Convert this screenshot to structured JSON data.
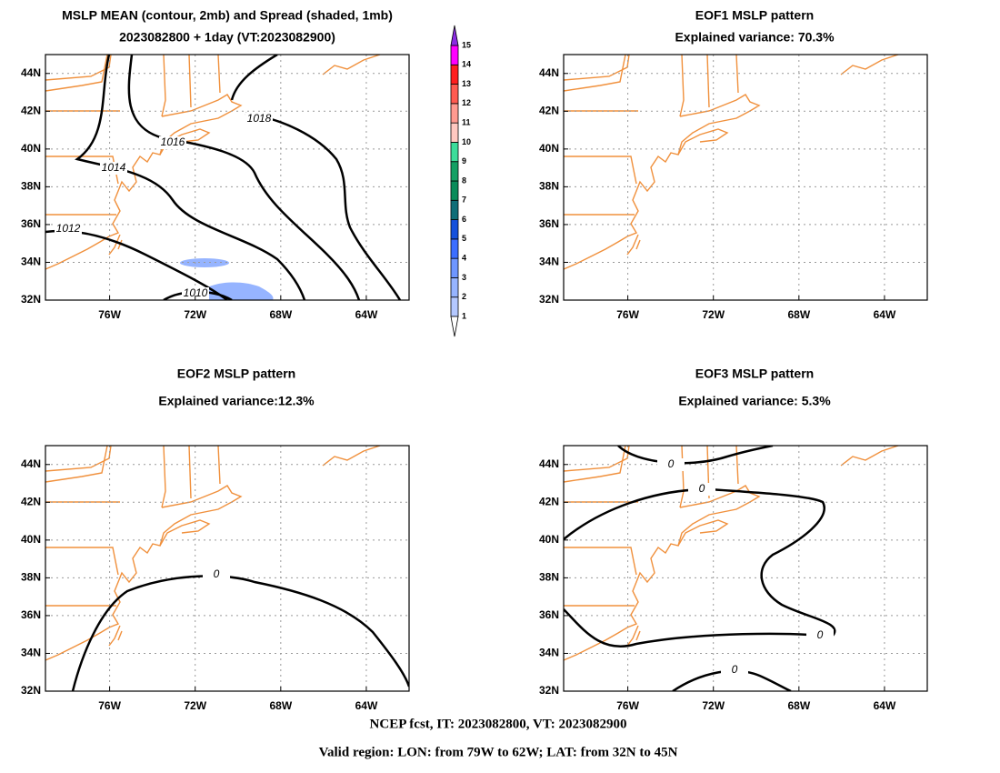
{
  "panels": [
    {
      "title": [
        "MSLP MEAN (contour, 2mb) and Spread (shaded, 1mb)",
        "2023082800 + 1day (VT:2023082900)"
      ],
      "contours": [
        1018,
        1016,
        1014,
        1012,
        1010
      ]
    },
    {
      "title": [
        "EOF1 MSLP pattern",
        "Explained variance: 70.3%"
      ],
      "contours": []
    },
    {
      "title": [
        "EOF2 MSLP pattern",
        "Explained variance:12.3%"
      ],
      "contours": [
        0
      ]
    },
    {
      "title": [
        "EOF3 MSLP pattern",
        "Explained variance: 5.3%"
      ],
      "contours": [
        0,
        0,
        0,
        0
      ]
    }
  ],
  "xlim": [
    -79,
    -62
  ],
  "ylim": [
    32,
    45
  ],
  "xticks": [
    {
      "value": -76,
      "label": "76W"
    },
    {
      "value": -72,
      "label": "72W"
    },
    {
      "value": -68,
      "label": "68W"
    },
    {
      "value": -64,
      "label": "64W"
    }
  ],
  "yticks": [
    {
      "value": 32,
      "label": "32N"
    },
    {
      "value": 34,
      "label": "34N"
    },
    {
      "value": 36,
      "label": "36N"
    },
    {
      "value": 38,
      "label": "38N"
    },
    {
      "value": 40,
      "label": "40N"
    },
    {
      "value": 42,
      "label": "42N"
    },
    {
      "value": 44,
      "label": "44N"
    }
  ],
  "colorbar": {
    "levels": [
      1,
      2,
      3,
      4,
      5,
      6,
      7,
      8,
      9,
      10,
      11,
      12,
      13,
      14,
      15
    ],
    "colors": [
      "#b4c8ff",
      "#96b4ff",
      "#6e96ff",
      "#3c6eff",
      "#1450dc",
      "#0f6e78",
      "#0a8c5a",
      "#14a064",
      "#3cdc9a",
      "#ffc8c0",
      "#ff9a90",
      "#ff5a50",
      "#ff1e1e",
      "#ff00ff"
    ],
    "under_color": "#ffffff",
    "over_color": "#8a2be2"
  },
  "footer": [
    "NCEP fcst, IT: 2023082800, VT: 2023082900",
    "Valid region: LON: from 79W to 62W; LAT: from 32N to 45N"
  ]
}
